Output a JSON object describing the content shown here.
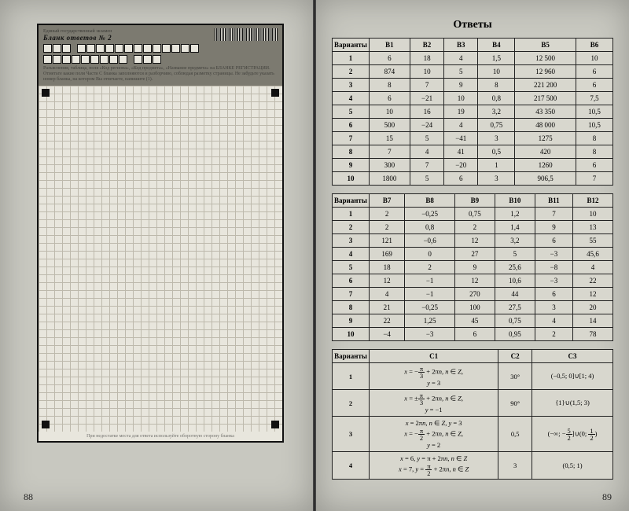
{
  "left": {
    "system_label": "Единый государственный экзамен",
    "form_title": "Бланк ответов № 2",
    "instructions": "Разъяснения, таблица, поля «Код региона», «Код предмета», «Название предмета» на БЛАНКЕ РЕГИСТРАЦИИ. Отметьте какие поля Части С бланка заполняются и разборчиво, соблюдая разметку страницы. Не забудьте указать номер бланка, на котором Вы отвечаете, напишите (1).",
    "footer": "При недостатке места для ответа используйте оборотную сторону бланка",
    "page_number": "88"
  },
  "right": {
    "title": "Ответы",
    "page_number": "89",
    "table1": {
      "headers": [
        "Варианты",
        "В1",
        "В2",
        "В3",
        "В4",
        "В5",
        "В6"
      ],
      "rows": [
        [
          "1",
          "6",
          "18",
          "4",
          "1,5",
          "12 500",
          "10"
        ],
        [
          "2",
          "874",
          "10",
          "5",
          "10",
          "12 960",
          "6"
        ],
        [
          "3",
          "8",
          "7",
          "9",
          "8",
          "221 200",
          "6"
        ],
        [
          "4",
          "6",
          "−21",
          "10",
          "0,8",
          "217 500",
          "7,5"
        ],
        [
          "5",
          "10",
          "16",
          "19",
          "3,2",
          "43 350",
          "10,5"
        ],
        [
          "6",
          "500",
          "−24",
          "4",
          "0,75",
          "48 000",
          "10,5"
        ],
        [
          "7",
          "15",
          "5",
          "−41",
          "3",
          "1275",
          "8"
        ],
        [
          "8",
          "7",
          "4",
          "41",
          "0,5",
          "420",
          "8"
        ],
        [
          "9",
          "300",
          "7",
          "−20",
          "1",
          "1260",
          "6"
        ],
        [
          "10",
          "1800",
          "5",
          "6",
          "3",
          "906,5",
          "7"
        ]
      ]
    },
    "table2": {
      "headers": [
        "Варианты",
        "В7",
        "В8",
        "В9",
        "В10",
        "В11",
        "В12"
      ],
      "rows": [
        [
          "1",
          "2",
          "−0,25",
          "0,75",
          "1,2",
          "7",
          "10"
        ],
        [
          "2",
          "2",
          "0,8",
          "2",
          "1,4",
          "9",
          "13"
        ],
        [
          "3",
          "121",
          "−0,6",
          "12",
          "3,2",
          "6",
          "55"
        ],
        [
          "4",
          "169",
          "0",
          "27",
          "5",
          "−3",
          "45,6"
        ],
        [
          "5",
          "18",
          "2",
          "9",
          "25,6",
          "−8",
          "4"
        ],
        [
          "6",
          "12",
          "−1",
          "12",
          "10,6",
          "−3",
          "22"
        ],
        [
          "7",
          "4",
          "−1",
          "270",
          "44",
          "6",
          "12"
        ],
        [
          "8",
          "21",
          "−0,25",
          "100",
          "27,5",
          "3",
          "20"
        ],
        [
          "9",
          "22",
          "1,25",
          "45",
          "0,75",
          "4",
          "14"
        ],
        [
          "10",
          "−4",
          "−3",
          "6",
          "0,95",
          "2",
          "78"
        ]
      ]
    },
    "table3": {
      "headers": [
        "Варианты",
        "С1",
        "С2",
        "С3"
      ],
      "rows": [
        [
          "1",
          "x = −π/3 + 2πn, n ∈ Z,\ny = 3",
          "30°",
          "(−0,5; 0]∪[1; 4)"
        ],
        [
          "2",
          "x = ±π/3 + 2πn, n ∈ Z,\ny = −1",
          "90°",
          "{1}∪(1,5; 3)"
        ],
        [
          "3",
          "x = 2πn, n ∈ Z, y = 3\nx = −π/2 + 2πn, n ∈ Z,\ny = 2",
          "0,5",
          "(−∞; −5/2]∪(0; 1/2)"
        ],
        [
          "4",
          "x = 6, y = π + 2πn, n ∈ Z\nx = 7, y = π/2 + 2πn, n ∈ Z",
          "3",
          "(0,5; 1)"
        ]
      ]
    }
  }
}
